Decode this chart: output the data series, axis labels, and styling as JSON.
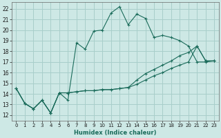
{
  "xlabel": "Humidex (Indice chaleur)",
  "ylabel": "",
  "bg_color": "#cde8e5",
  "grid_color": "#a8ceca",
  "line_color": "#1a6b5a",
  "xlim": [
    -0.5,
    23.5
  ],
  "ylim": [
    11.5,
    22.6
  ],
  "xticks": [
    0,
    1,
    2,
    3,
    4,
    5,
    6,
    7,
    8,
    9,
    10,
    11,
    12,
    13,
    14,
    15,
    16,
    17,
    18,
    19,
    20,
    21,
    22,
    23
  ],
  "yticks": [
    12,
    13,
    14,
    15,
    16,
    17,
    18,
    19,
    20,
    21,
    22
  ],
  "series": [
    [
      14.5,
      13.1,
      12.6,
      13.4,
      12.2,
      14.1,
      13.4,
      18.8,
      18.2,
      19.9,
      20.0,
      21.6,
      22.2,
      20.5,
      21.5,
      21.1,
      19.3,
      19.5,
      19.3,
      19.0,
      18.5,
      17.0,
      17.0,
      17.1
    ],
    [
      14.5,
      13.1,
      12.6,
      13.4,
      12.2,
      14.1,
      14.1,
      14.2,
      14.3,
      14.3,
      14.4,
      14.4,
      14.5,
      14.6,
      15.3,
      15.9,
      16.3,
      16.7,
      17.1,
      17.6,
      17.9,
      18.5,
      17.1,
      17.1
    ],
    [
      14.5,
      13.1,
      12.6,
      13.4,
      12.2,
      14.1,
      14.1,
      14.2,
      14.3,
      14.3,
      14.4,
      14.4,
      14.5,
      14.6,
      14.9,
      15.3,
      15.7,
      16.0,
      16.4,
      16.7,
      17.0,
      18.5,
      17.1,
      17.1
    ]
  ]
}
